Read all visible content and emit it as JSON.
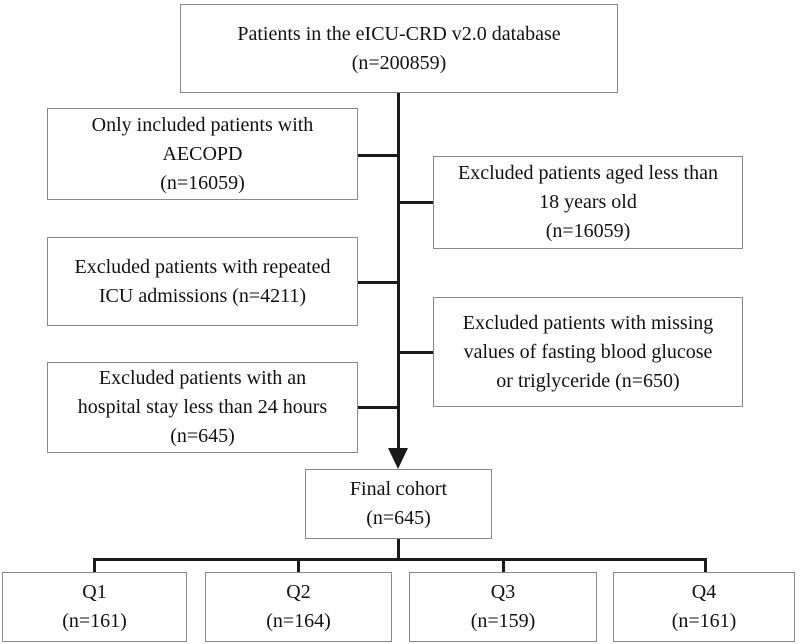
{
  "diagram": {
    "type": "flowchart",
    "colors": {
      "background": "#ffffff",
      "box_border": "#8a8a8a",
      "connector_line": "#1a1a1a",
      "text": "#111111"
    },
    "boxes": {
      "top": {
        "text": "Patients in the eICU-CRD v2.0 database\n(n=200859)"
      },
      "left1": {
        "text": "Only included patients with\nAECOPD\n(n=16059)"
      },
      "right1": {
        "text": "Excluded patients aged less than\n18 years old\n(n=16059)"
      },
      "left2": {
        "text": "Excluded patients with repeated\nICU admissions (n=4211)"
      },
      "right2": {
        "text": "Excluded patients with missing\nvalues of fasting blood glucose\nor triglyceride (n=650)"
      },
      "left3": {
        "text": "Excluded patients with an\nhospital stay less than 24 hours\n(n=645)"
      },
      "final": {
        "text": "Final cohort\n(n=645)"
      },
      "q1": {
        "text": "Q1\n(n=161)"
      },
      "q2": {
        "text": "Q2\n(n=164)"
      },
      "q3": {
        "text": "Q3\n(n=159)"
      },
      "q4": {
        "text": "Q4\n(n=161)"
      }
    }
  }
}
